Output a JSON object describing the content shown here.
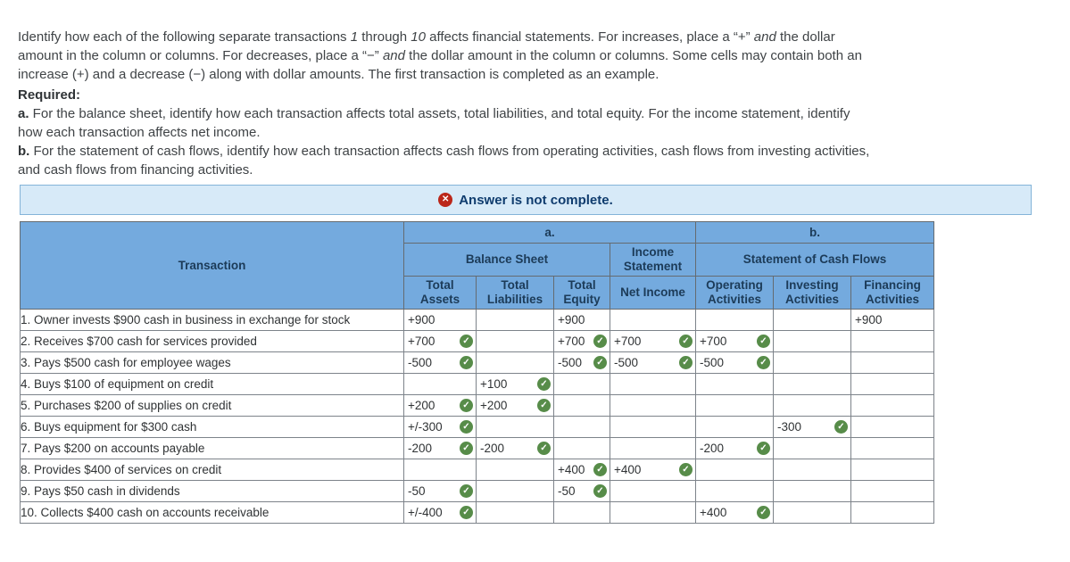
{
  "intro_html": "Identify how each of the following separate transactions <i>1</i> through <i>10</i> affects financial statements. For increases, place a “+” <i>and</i> the dollar amount in the column or columns. For decreases, place a “−” <i>and</i> the dollar amount in the column or columns. Some cells may contain both an increase (+) and a decrease (−) along with dollar amounts. The first transaction is completed as an example.",
  "required": {
    "heading": "Required:",
    "a_prefix": "a.",
    "a_text": " For the balance sheet, identify how each transaction affects total assets, total liabilities, and total equity. For the income statement, identify how each transaction affects net income.",
    "b_prefix": "b.",
    "b_text": " For the statement of cash flows, identify how each transaction affects cash flows from operating activities, cash flows from investing activities, and cash flows from financing activities."
  },
  "banner": {
    "text": "Answer is not complete.",
    "icon": "x-circle",
    "background": "#d7eaf8",
    "border_color": "#84b4d8",
    "text_color": "#0f3c6e",
    "icon_color": "#bb271a"
  },
  "table": {
    "header_bg": "#74aade",
    "header_text_color": "#1c3b58",
    "filled_cell_bg": "#f1f4ee",
    "check_color": "#578c49",
    "transaction_header": "Transaction",
    "group_a": "a.",
    "group_b": "b.",
    "balance_sheet": "Balance Sheet",
    "income_statement": "Income Statement",
    "cash_flows": "Statement of Cash Flows",
    "columns": [
      "Total Assets",
      "Total Liabilities",
      "Total Equity",
      "Net Income",
      "Operating Activities",
      "Investing Activities",
      "Financing Activities"
    ],
    "rows": [
      {
        "label": "1. Owner invests $900 cash in business in exchange for stock",
        "cells": [
          {
            "v": "+900",
            "check": false
          },
          null,
          {
            "v": "+900",
            "check": false
          },
          null,
          null,
          null,
          {
            "v": "+900",
            "check": false
          }
        ]
      },
      {
        "label": "2. Receives $700 cash for services provided",
        "cells": [
          {
            "v": "+700",
            "check": true
          },
          null,
          {
            "v": "+700",
            "check": true
          },
          {
            "v": "+700",
            "check": true
          },
          {
            "v": "+700",
            "check": true
          },
          null,
          null
        ]
      },
      {
        "label": "3. Pays $500 cash for employee wages",
        "cells": [
          {
            "v": "-500",
            "check": true
          },
          null,
          {
            "v": "-500",
            "check": true
          },
          {
            "v": "-500",
            "check": true
          },
          {
            "v": "-500",
            "check": true
          },
          null,
          null
        ]
      },
      {
        "label": "4. Buys $100 of equipment on credit",
        "cells": [
          null,
          {
            "v": "+100",
            "check": true
          },
          null,
          null,
          null,
          null,
          null
        ]
      },
      {
        "label": "5. Purchases $200 of supplies on credit",
        "cells": [
          {
            "v": "+200",
            "check": true
          },
          {
            "v": "+200",
            "check": true
          },
          null,
          null,
          null,
          null,
          null
        ]
      },
      {
        "label": "6. Buys equipment for $300 cash",
        "cells": [
          {
            "v": "+/-300",
            "check": true
          },
          null,
          null,
          null,
          null,
          {
            "v": "-300",
            "check": true
          },
          null
        ]
      },
      {
        "label": "7. Pays $200 on accounts payable",
        "cells": [
          {
            "v": "-200",
            "check": true
          },
          {
            "v": "-200",
            "check": true
          },
          null,
          null,
          {
            "v": "-200",
            "check": true
          },
          null,
          null
        ]
      },
      {
        "label": "8. Provides $400 of services on credit",
        "cells": [
          null,
          null,
          {
            "v": "+400",
            "check": true
          },
          {
            "v": "+400",
            "check": true
          },
          null,
          null,
          null
        ]
      },
      {
        "label": "9. Pays $50 cash in dividends",
        "cells": [
          {
            "v": "-50",
            "check": true
          },
          null,
          {
            "v": "-50",
            "check": true
          },
          null,
          null,
          null,
          null
        ]
      },
      {
        "label": "10. Collects $400 cash on accounts receivable",
        "cells": [
          {
            "v": "+/-400",
            "check": true
          },
          null,
          null,
          null,
          {
            "v": "+400",
            "check": true
          },
          null,
          null
        ]
      }
    ]
  }
}
